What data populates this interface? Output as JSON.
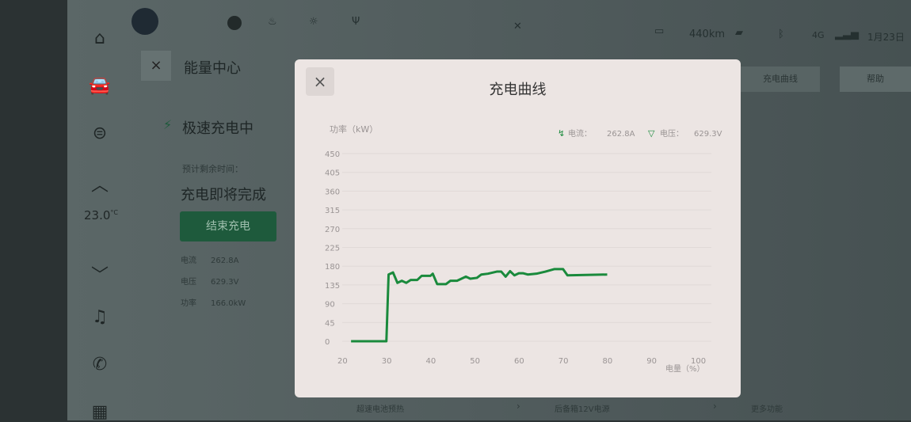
{
  "status_bar": {
    "range": "440km",
    "network": "4G",
    "date": "1月23日",
    "icons": [
      "camera-icon",
      "battery-charging-icon",
      "bluetooth-icon",
      "signal-icon",
      "defrost-icon",
      "auto-light-icon",
      "usb-icon",
      "logo-icon"
    ]
  },
  "sidebar": {
    "temperature": "23.0",
    "temp_unit": "°C",
    "icons": [
      "home-icon",
      "car-icon",
      "steering-wheel-icon",
      "chevron-up-icon",
      "chevron-down-icon",
      "music-icon",
      "phone-icon",
      "apps-icon"
    ]
  },
  "page": {
    "title": "能量中心",
    "status": "极速充电中",
    "remaining_label": "预计剩余时间：",
    "remaining_value": "充电即将完成",
    "stop_button": "结束充电",
    "stats": [
      {
        "label": "电流",
        "value": "262.8A"
      },
      {
        "label": "电压",
        "value": "629.3V"
      },
      {
        "label": "功率",
        "value": "166.0kW"
      }
    ],
    "tabs": [
      "充电曲线",
      "帮助"
    ],
    "bottom_items": [
      "超速电池预热",
      "后备箱12V电源",
      "更多功能"
    ]
  },
  "modal": {
    "title": "充电曲线",
    "close": "×",
    "legend": [
      {
        "label": "电流：",
        "value": "262.8A",
        "icon": "current-icon"
      },
      {
        "label": "电压：",
        "value": "629.3V",
        "icon": "voltage-icon"
      }
    ]
  },
  "chart_data": {
    "type": "line",
    "ylabel": "功率（kW）",
    "xlabel": "电量（%）",
    "xlim": [
      20,
      100
    ],
    "ylim": [
      0,
      450
    ],
    "xticks": [
      "20",
      "30",
      "40",
      "50",
      "60",
      "70",
      "80",
      "90",
      "100"
    ],
    "yticks": [
      "0",
      "45",
      "90",
      "135",
      "180",
      "225",
      "270",
      "315",
      "360",
      "405",
      "450"
    ],
    "grid": true,
    "color": "#1a8a3c",
    "x": [
      22,
      30,
      30.5,
      31.5,
      32.5,
      33.5,
      34.5,
      35.5,
      37,
      38,
      40,
      40.5,
      41.5,
      43.5,
      44.5,
      46,
      48,
      49,
      50.5,
      51.5,
      53,
      55,
      56,
      57,
      58,
      59,
      60,
      61,
      62,
      64,
      66,
      68,
      70,
      71,
      80
    ],
    "y": [
      0,
      0,
      160,
      165,
      140,
      145,
      140,
      147,
      147,
      157,
      157,
      162,
      137,
      137,
      145,
      145,
      155,
      150,
      152,
      160,
      162,
      167,
      167,
      155,
      168,
      158,
      163,
      163,
      160,
      162,
      167,
      173,
      173,
      158,
      160
    ]
  }
}
